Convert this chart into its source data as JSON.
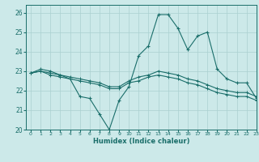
{
  "xlabel": "Humidex (Indice chaleur)",
  "ylabel": "",
  "xlim": [
    -0.5,
    23
  ],
  "ylim": [
    20,
    26.4
  ],
  "yticks": [
    20,
    21,
    22,
    23,
    24,
    25,
    26
  ],
  "xticks": [
    0,
    1,
    2,
    3,
    4,
    5,
    6,
    7,
    8,
    9,
    10,
    11,
    12,
    13,
    14,
    15,
    16,
    17,
    18,
    19,
    20,
    21,
    22,
    23
  ],
  "background_color": "#cce9e9",
  "grid_color": "#aad0d0",
  "line_color": "#1a6e6a",
  "line1_y": [
    22.9,
    23.1,
    23.0,
    22.8,
    22.6,
    21.7,
    21.6,
    20.8,
    20.0,
    21.5,
    22.2,
    23.8,
    24.3,
    25.9,
    25.9,
    25.2,
    24.1,
    24.8,
    25.0,
    23.1,
    22.6,
    22.4,
    22.4,
    21.6
  ],
  "line2_y": [
    22.9,
    23.0,
    22.9,
    22.8,
    22.7,
    22.6,
    22.5,
    22.4,
    22.2,
    22.2,
    22.5,
    22.7,
    22.8,
    23.0,
    22.9,
    22.8,
    22.6,
    22.5,
    22.3,
    22.1,
    22.0,
    21.9,
    21.9,
    21.7
  ],
  "line3_y": [
    22.9,
    23.0,
    22.8,
    22.7,
    22.6,
    22.5,
    22.4,
    22.3,
    22.1,
    22.1,
    22.4,
    22.5,
    22.7,
    22.8,
    22.7,
    22.6,
    22.4,
    22.3,
    22.1,
    21.9,
    21.8,
    21.7,
    21.7,
    21.5
  ]
}
